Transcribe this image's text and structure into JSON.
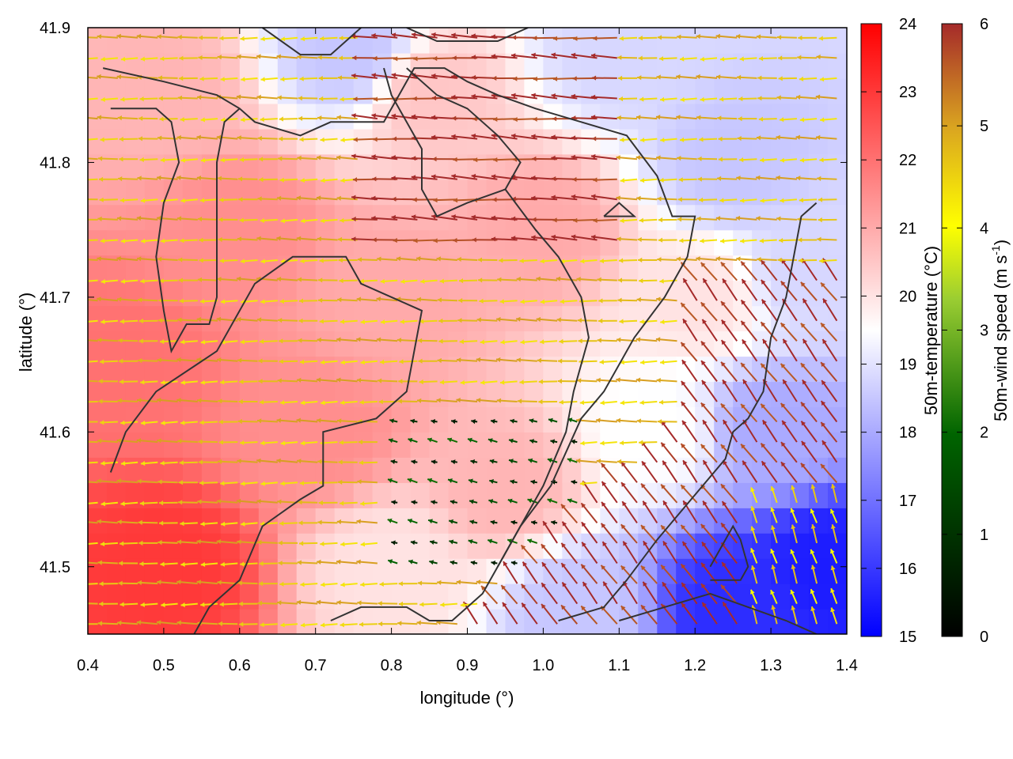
{
  "chart_data": {
    "type": "heatmap",
    "title": "",
    "xlabel": "longitude (°)",
    "ylabel": "latitude (°)",
    "xlim": [
      0.4,
      1.4
    ],
    "ylim": [
      41.45,
      41.9
    ],
    "xticks": [
      "0.4",
      "0.5",
      "0.6",
      "0.7",
      "0.8",
      "0.9",
      "1.0",
      "1.1",
      "1.2",
      "1.3",
      "1.4"
    ],
    "yticks": [
      "41.5",
      "41.6",
      "41.7",
      "41.8",
      "41.9"
    ],
    "x_tick_values": [
      0.4,
      0.5,
      0.6,
      0.7,
      0.8,
      0.9,
      1.0,
      1.1,
      1.2,
      1.3,
      1.4
    ],
    "y_tick_values": [
      41.5,
      41.6,
      41.7,
      41.8,
      41.9
    ],
    "temperature_colorbar": {
      "label": "50m-temperature (°C)",
      "range": [
        15,
        24
      ],
      "ticks": [
        "15",
        "16",
        "17",
        "18",
        "19",
        "20",
        "21",
        "22",
        "23",
        "24"
      ],
      "colors": [
        "#0000ff",
        "#ffffff",
        "#ff0000"
      ]
    },
    "wind_colorbar": {
      "label": "50m-wind speed (m s",
      "label_sup": "-1",
      "label_end": ")",
      "range": [
        0,
        6
      ],
      "ticks": [
        "0",
        "1",
        "2",
        "3",
        "4",
        "5",
        "6"
      ],
      "colors": [
        "#000000",
        "#006400",
        "#ffff00",
        "#daa520",
        "#a52a2a"
      ]
    },
    "temperature_anchors": [
      {
        "lon": 0.5,
        "lat": 41.5,
        "t": 23.0
      },
      {
        "lon": 0.45,
        "lat": 41.65,
        "t": 22.0
      },
      {
        "lon": 0.6,
        "lat": 41.75,
        "t": 21.5
      },
      {
        "lon": 0.5,
        "lat": 41.85,
        "t": 20.8
      },
      {
        "lon": 0.7,
        "lat": 41.6,
        "t": 21.5
      },
      {
        "lon": 0.8,
        "lat": 41.7,
        "t": 21.0
      },
      {
        "lon": 0.85,
        "lat": 41.85,
        "t": 20.5
      },
      {
        "lon": 0.75,
        "lat": 41.88,
        "t": 18.5
      },
      {
        "lon": 1.0,
        "lat": 41.75,
        "t": 21.0
      },
      {
        "lon": 0.95,
        "lat": 41.56,
        "t": 20.8
      },
      {
        "lon": 1.1,
        "lat": 41.88,
        "t": 18.8
      },
      {
        "lon": 1.25,
        "lat": 41.8,
        "t": 18.5
      },
      {
        "lon": 1.2,
        "lat": 41.7,
        "t": 20.0
      },
      {
        "lon": 1.15,
        "lat": 41.6,
        "t": 19.5
      },
      {
        "lon": 1.3,
        "lat": 41.6,
        "t": 18.0
      },
      {
        "lon": 1.38,
        "lat": 41.5,
        "t": 15.5
      },
      {
        "lon": 1.25,
        "lat": 41.47,
        "t": 15.8
      },
      {
        "lon": 1.05,
        "lat": 41.47,
        "t": 18.5
      },
      {
        "lon": 0.8,
        "lat": 41.5,
        "t": 20.0
      },
      {
        "lon": 1.35,
        "lat": 41.72,
        "t": 18.8
      }
    ],
    "wind_regions": [
      {
        "name": "west",
        "u": -1.0,
        "v": 0.0,
        "speed": 4.0
      },
      {
        "name": "northeast-tongue",
        "u": -1.0,
        "v": 0.05,
        "speed": 6.0
      },
      {
        "name": "center-calm",
        "u": -0.4,
        "v": 0.1,
        "speed": 1.0
      },
      {
        "name": "southeast-flow",
        "u": -0.6,
        "v": 0.8,
        "speed": 6.0
      },
      {
        "name": "far-southeast",
        "u": -0.3,
        "v": 0.9,
        "speed": 3.5
      }
    ],
    "contours": [
      [
        [
          0.43,
          41.57
        ],
        [
          0.45,
          41.6
        ],
        [
          0.49,
          41.63
        ],
        [
          0.57,
          41.66
        ],
        [
          0.62,
          41.71
        ],
        [
          0.67,
          41.73
        ],
        [
          0.74,
          41.73
        ],
        [
          0.76,
          41.71
        ],
        [
          0.84,
          41.69
        ],
        [
          0.82,
          41.63
        ],
        [
          0.78,
          41.61
        ],
        [
          0.71,
          41.6
        ],
        [
          0.71,
          41.56
        ],
        [
          0.68,
          41.55
        ],
        [
          0.63,
          41.53
        ],
        [
          0.6,
          41.49
        ],
        [
          0.56,
          41.47
        ],
        [
          0.54,
          41.45
        ]
      ],
      [
        [
          0.42,
          41.87
        ],
        [
          0.5,
          41.86
        ],
        [
          0.57,
          41.85
        ],
        [
          0.6,
          41.84
        ],
        [
          0.62,
          41.83
        ],
        [
          0.68,
          41.82
        ],
        [
          0.72,
          41.83
        ],
        [
          0.79,
          41.83
        ],
        [
          0.83,
          41.87
        ],
        [
          0.87,
          41.87
        ],
        [
          0.9,
          41.86
        ],
        [
          0.94,
          41.85
        ],
        [
          0.99,
          41.84
        ],
        [
          1.05,
          41.83
        ],
        [
          1.11,
          41.82
        ],
        [
          1.15,
          41.79
        ],
        [
          1.17,
          41.76
        ],
        [
          1.2,
          41.76
        ],
        [
          1.19,
          41.73
        ],
        [
          1.16,
          41.7
        ],
        [
          1.12,
          41.67
        ],
        [
          1.08,
          41.63
        ],
        [
          1.05,
          41.61
        ],
        [
          1.01,
          41.56
        ],
        [
          0.97,
          41.53
        ],
        [
          0.94,
          41.5
        ],
        [
          0.92,
          41.48
        ],
        [
          0.88,
          41.46
        ],
        [
          0.85,
          41.46
        ],
        [
          0.82,
          41.47
        ],
        [
          0.76,
          41.47
        ],
        [
          0.72,
          41.46
        ]
      ],
      [
        [
          0.43,
          41.84
        ],
        [
          0.49,
          41.84
        ],
        [
          0.51,
          41.83
        ],
        [
          0.52,
          41.8
        ],
        [
          0.5,
          41.77
        ],
        [
          0.49,
          41.73
        ],
        [
          0.5,
          41.69
        ],
        [
          0.51,
          41.66
        ],
        [
          0.53,
          41.68
        ],
        [
          0.56,
          41.68
        ],
        [
          0.57,
          41.7
        ],
        [
          0.57,
          41.75
        ],
        [
          0.57,
          41.8
        ],
        [
          0.58,
          41.83
        ],
        [
          0.6,
          41.84
        ]
      ],
      [
        [
          0.82,
          41.87
        ],
        [
          0.86,
          41.85
        ],
        [
          0.9,
          41.84
        ],
        [
          0.94,
          41.82
        ],
        [
          0.97,
          41.8
        ],
        [
          0.95,
          41.78
        ],
        [
          0.9,
          41.77
        ],
        [
          0.86,
          41.76
        ],
        [
          0.84,
          41.78
        ],
        [
          0.84,
          41.81
        ],
        [
          0.82,
          41.83
        ],
        [
          0.8,
          41.85
        ],
        [
          0.79,
          41.87
        ]
      ],
      [
        [
          0.95,
          41.78
        ],
        [
          0.99,
          41.75
        ],
        [
          1.02,
          41.73
        ],
        [
          1.05,
          41.7
        ],
        [
          1.06,
          41.67
        ],
        [
          1.04,
          41.63
        ],
        [
          1.03,
          41.6
        ],
        [
          1.0,
          41.56
        ],
        [
          0.97,
          41.53
        ],
        [
          0.94,
          41.5
        ]
      ],
      [
        [
          1.36,
          41.77
        ],
        [
          1.34,
          41.76
        ],
        [
          1.33,
          41.73
        ],
        [
          1.32,
          41.7
        ],
        [
          1.3,
          41.67
        ],
        [
          1.29,
          41.63
        ],
        [
          1.27,
          41.61
        ],
        [
          1.25,
          41.6
        ],
        [
          1.24,
          41.58
        ],
        [
          1.21,
          41.56
        ],
        [
          1.18,
          41.54
        ],
        [
          1.15,
          41.52
        ],
        [
          1.11,
          41.49
        ],
        [
          1.08,
          41.47
        ],
        [
          1.02,
          41.46
        ]
      ],
      [
        [
          1.22,
          41.5
        ],
        [
          1.25,
          41.53
        ],
        [
          1.26,
          41.52
        ],
        [
          1.27,
          41.5
        ],
        [
          1.26,
          41.49
        ],
        [
          1.22,
          41.49
        ]
      ],
      [
        [
          1.1,
          41.46
        ],
        [
          1.16,
          41.47
        ],
        [
          1.22,
          41.48
        ],
        [
          1.27,
          41.47
        ],
        [
          1.32,
          41.46
        ],
        [
          1.36,
          41.45
        ]
      ],
      [
        [
          0.63,
          41.9
        ],
        [
          0.68,
          41.88
        ],
        [
          0.72,
          41.88
        ],
        [
          0.74,
          41.89
        ],
        [
          0.76,
          41.9
        ]
      ],
      [
        [
          0.82,
          41.9
        ],
        [
          0.86,
          41.89
        ],
        [
          0.9,
          41.89
        ],
        [
          0.94,
          41.89
        ],
        [
          0.98,
          41.9
        ]
      ],
      [
        [
          1.08,
          41.76
        ],
        [
          1.1,
          41.76
        ],
        [
          1.12,
          41.76
        ],
        [
          1.1,
          41.77
        ],
        [
          1.08,
          41.76
        ]
      ]
    ]
  }
}
